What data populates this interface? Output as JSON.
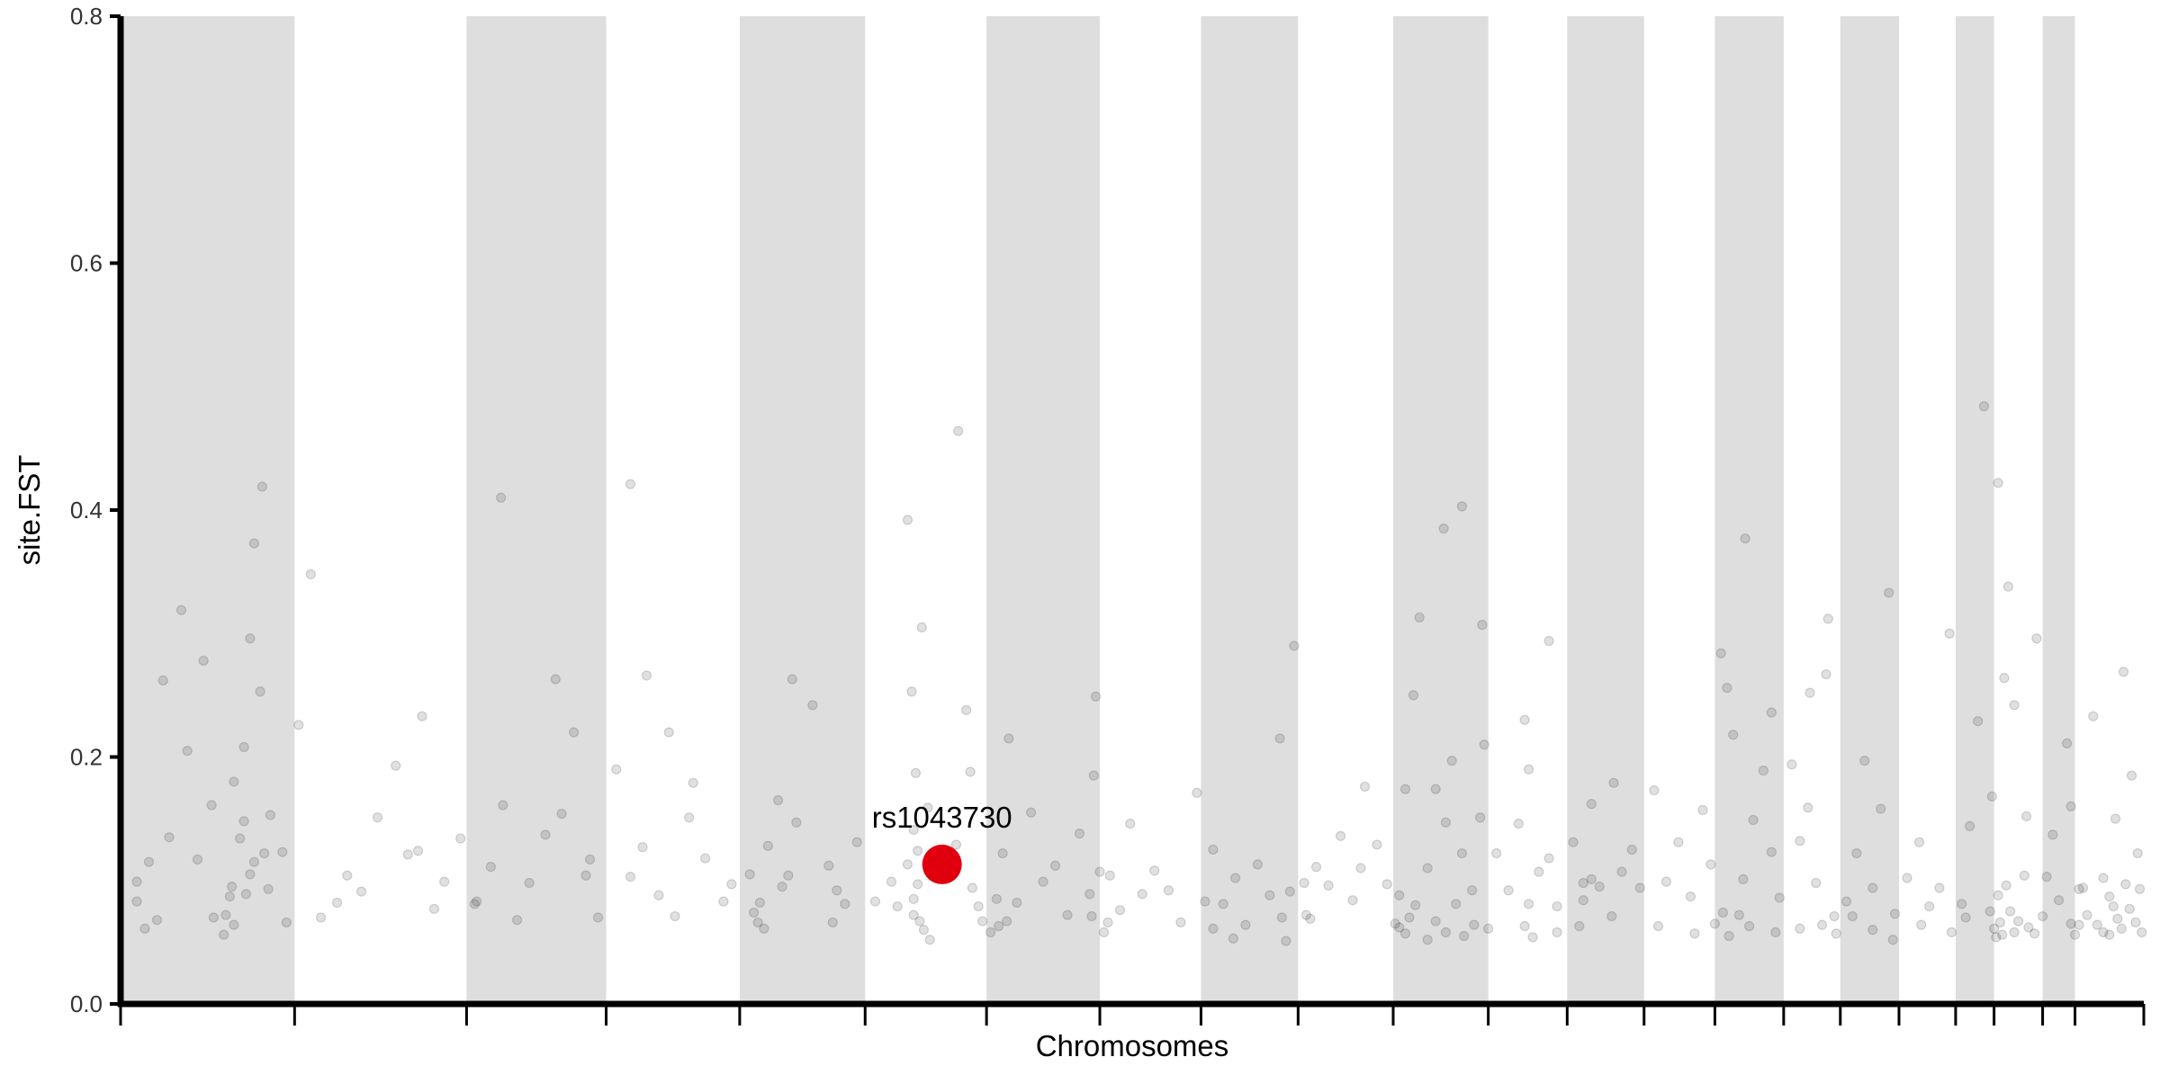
{
  "chart_data": {
    "type": "scatter",
    "title": "",
    "xlabel": "Chromosomes",
    "ylabel": "site.FST",
    "ylim": [
      0,
      0.8
    ],
    "yticks": [
      "0.0",
      "0.2",
      "0.4",
      "0.6",
      "0.8"
    ],
    "grid": false,
    "legend": "none",
    "point_color": "#000000",
    "point_opacity": 0.12,
    "band_color": "#dedede",
    "highlight_color": "#e0000d",
    "chromosome_bands": [
      {
        "start": 0.0,
        "end": 0.086,
        "shaded": true
      },
      {
        "start": 0.086,
        "end": 0.171,
        "shaded": false
      },
      {
        "start": 0.171,
        "end": 0.24,
        "shaded": true
      },
      {
        "start": 0.24,
        "end": 0.306,
        "shaded": false
      },
      {
        "start": 0.306,
        "end": 0.368,
        "shaded": true
      },
      {
        "start": 0.368,
        "end": 0.428,
        "shaded": false
      },
      {
        "start": 0.428,
        "end": 0.484,
        "shaded": true
      },
      {
        "start": 0.484,
        "end": 0.534,
        "shaded": false
      },
      {
        "start": 0.534,
        "end": 0.582,
        "shaded": true
      },
      {
        "start": 0.582,
        "end": 0.629,
        "shaded": false
      },
      {
        "start": 0.629,
        "end": 0.676,
        "shaded": true
      },
      {
        "start": 0.676,
        "end": 0.715,
        "shaded": false
      },
      {
        "start": 0.715,
        "end": 0.753,
        "shaded": true
      },
      {
        "start": 0.753,
        "end": 0.788,
        "shaded": false
      },
      {
        "start": 0.788,
        "end": 0.822,
        "shaded": true
      },
      {
        "start": 0.822,
        "end": 0.85,
        "shaded": false
      },
      {
        "start": 0.85,
        "end": 0.879,
        "shaded": true
      },
      {
        "start": 0.879,
        "end": 0.907,
        "shaded": false
      },
      {
        "start": 0.907,
        "end": 0.926,
        "shaded": true
      },
      {
        "start": 0.926,
        "end": 0.95,
        "shaded": false
      },
      {
        "start": 0.95,
        "end": 0.966,
        "shaded": true
      },
      {
        "start": 0.966,
        "end": 1.0,
        "shaded": false
      }
    ],
    "points": [
      [
        0.008,
        0.083
      ],
      [
        0.012,
        0.061
      ],
      [
        0.024,
        0.135
      ],
      [
        0.033,
        0.205
      ],
      [
        0.045,
        0.161
      ],
      [
        0.051,
        0.056
      ],
      [
        0.052,
        0.072
      ],
      [
        0.056,
        0.064
      ],
      [
        0.059,
        0.134
      ],
      [
        0.064,
        0.105
      ],
      [
        0.021,
        0.262
      ],
      [
        0.03,
        0.319
      ],
      [
        0.041,
        0.278
      ],
      [
        0.055,
        0.095
      ],
      [
        0.046,
        0.07
      ],
      [
        0.054,
        0.087
      ],
      [
        0.056,
        0.18
      ],
      [
        0.061,
        0.208
      ],
      [
        0.064,
        0.296
      ],
      [
        0.066,
        0.373
      ],
      [
        0.07,
        0.419
      ],
      [
        0.074,
        0.153
      ],
      [
        0.088,
        0.226
      ],
      [
        0.099,
        0.07
      ],
      [
        0.107,
        0.082
      ],
      [
        0.112,
        0.104
      ],
      [
        0.119,
        0.091
      ],
      [
        0.127,
        0.151
      ],
      [
        0.136,
        0.193
      ],
      [
        0.142,
        0.121
      ],
      [
        0.149,
        0.233
      ],
      [
        0.16,
        0.099
      ],
      [
        0.168,
        0.134
      ],
      [
        0.175,
        0.081
      ],
      [
        0.094,
        0.348
      ],
      [
        0.176,
        0.083
      ],
      [
        0.183,
        0.111
      ],
      [
        0.189,
        0.161
      ],
      [
        0.196,
        0.068
      ],
      [
        0.202,
        0.098
      ],
      [
        0.21,
        0.137
      ],
      [
        0.218,
        0.154
      ],
      [
        0.224,
        0.22
      ],
      [
        0.23,
        0.104
      ],
      [
        0.236,
        0.07
      ],
      [
        0.188,
        0.41
      ],
      [
        0.215,
        0.263
      ],
      [
        0.245,
        0.19
      ],
      [
        0.252,
        0.103
      ],
      [
        0.258,
        0.127
      ],
      [
        0.266,
        0.088
      ],
      [
        0.274,
        0.071
      ],
      [
        0.281,
        0.151
      ],
      [
        0.289,
        0.118
      ],
      [
        0.298,
        0.083
      ],
      [
        0.252,
        0.421
      ],
      [
        0.26,
        0.266
      ],
      [
        0.271,
        0.22
      ],
      [
        0.283,
        0.179
      ],
      [
        0.302,
        0.097
      ],
      [
        0.313,
        0.074
      ],
      [
        0.32,
        0.128
      ],
      [
        0.327,
        0.095
      ],
      [
        0.334,
        0.147
      ],
      [
        0.342,
        0.242
      ],
      [
        0.35,
        0.112
      ],
      [
        0.358,
        0.081
      ],
      [
        0.364,
        0.131
      ],
      [
        0.332,
        0.263
      ],
      [
        0.325,
        0.165
      ],
      [
        0.373,
        0.083
      ],
      [
        0.381,
        0.099
      ],
      [
        0.389,
        0.113
      ],
      [
        0.394,
        0.097
      ],
      [
        0.389,
        0.392
      ],
      [
        0.391,
        0.253
      ],
      [
        0.392,
        0.141
      ],
      [
        0.396,
        0.305
      ],
      [
        0.392,
        0.072
      ],
      [
        0.393,
        0.187
      ],
      [
        0.413,
        0.129
      ],
      [
        0.421,
        0.094
      ],
      [
        0.414,
        0.464
      ],
      [
        0.418,
        0.238
      ],
      [
        0.42,
        0.188
      ],
      [
        0.424,
        0.079
      ],
      [
        0.433,
        0.085
      ],
      [
        0.436,
        0.122
      ],
      [
        0.439,
        0.215
      ],
      [
        0.443,
        0.082
      ],
      [
        0.45,
        0.155
      ],
      [
        0.456,
        0.099
      ],
      [
        0.462,
        0.112
      ],
      [
        0.468,
        0.072
      ],
      [
        0.474,
        0.138
      ],
      [
        0.479,
        0.089
      ],
      [
        0.482,
        0.249
      ],
      [
        0.481,
        0.185
      ],
      [
        0.489,
        0.104
      ],
      [
        0.494,
        0.076
      ],
      [
        0.499,
        0.146
      ],
      [
        0.505,
        0.089
      ],
      [
        0.511,
        0.108
      ],
      [
        0.518,
        0.092
      ],
      [
        0.524,
        0.066
      ],
      [
        0.532,
        0.171
      ],
      [
        0.536,
        0.083
      ],
      [
        0.54,
        0.125
      ],
      [
        0.545,
        0.081
      ],
      [
        0.551,
        0.102
      ],
      [
        0.556,
        0.064
      ],
      [
        0.562,
        0.113
      ],
      [
        0.568,
        0.088
      ],
      [
        0.573,
        0.215
      ],
      [
        0.578,
        0.091
      ],
      [
        0.58,
        0.29
      ],
      [
        0.586,
        0.072
      ],
      [
        0.591,
        0.111
      ],
      [
        0.597,
        0.096
      ],
      [
        0.603,
        0.136
      ],
      [
        0.609,
        0.084
      ],
      [
        0.615,
        0.176
      ],
      [
        0.621,
        0.129
      ],
      [
        0.626,
        0.097
      ],
      [
        0.613,
        0.11
      ],
      [
        0.632,
        0.088
      ],
      [
        0.635,
        0.174
      ],
      [
        0.639,
        0.25
      ],
      [
        0.642,
        0.313
      ],
      [
        0.646,
        0.11
      ],
      [
        0.65,
        0.174
      ],
      [
        0.655,
        0.147
      ],
      [
        0.658,
        0.197
      ],
      [
        0.663,
        0.122
      ],
      [
        0.668,
        0.092
      ],
      [
        0.672,
        0.151
      ],
      [
        0.674,
        0.21
      ],
      [
        0.654,
        0.385
      ],
      [
        0.663,
        0.403
      ],
      [
        0.673,
        0.307
      ],
      [
        0.68,
        0.122
      ],
      [
        0.686,
        0.092
      ],
      [
        0.691,
        0.146
      ],
      [
        0.696,
        0.19
      ],
      [
        0.701,
        0.107
      ],
      [
        0.706,
        0.118
      ],
      [
        0.71,
        0.079
      ],
      [
        0.694,
        0.23
      ],
      [
        0.706,
        0.294
      ],
      [
        0.718,
        0.131
      ],
      [
        0.723,
        0.084
      ],
      [
        0.727,
        0.162
      ],
      [
        0.731,
        0.095
      ],
      [
        0.737,
        0.071
      ],
      [
        0.742,
        0.107
      ],
      [
        0.747,
        0.125
      ],
      [
        0.751,
        0.094
      ],
      [
        0.738,
        0.179
      ],
      [
        0.727,
        0.101
      ],
      [
        0.758,
        0.173
      ],
      [
        0.764,
        0.099
      ],
      [
        0.77,
        0.131
      ],
      [
        0.776,
        0.087
      ],
      [
        0.782,
        0.157
      ],
      [
        0.786,
        0.113
      ],
      [
        0.791,
        0.284
      ],
      [
        0.794,
        0.256
      ],
      [
        0.797,
        0.218
      ],
      [
        0.802,
        0.101
      ],
      [
        0.807,
        0.149
      ],
      [
        0.812,
        0.189
      ],
      [
        0.816,
        0.123
      ],
      [
        0.82,
        0.086
      ],
      [
        0.803,
        0.377
      ],
      [
        0.816,
        0.236
      ],
      [
        0.826,
        0.194
      ],
      [
        0.83,
        0.132
      ],
      [
        0.834,
        0.159
      ],
      [
        0.838,
        0.098
      ],
      [
        0.843,
        0.267
      ],
      [
        0.844,
        0.312
      ],
      [
        0.847,
        0.071
      ],
      [
        0.835,
        0.252
      ],
      [
        0.853,
        0.083
      ],
      [
        0.858,
        0.122
      ],
      [
        0.862,
        0.197
      ],
      [
        0.866,
        0.094
      ],
      [
        0.87,
        0.158
      ],
      [
        0.874,
        0.333
      ],
      [
        0.877,
        0.073
      ],
      [
        0.883,
        0.102
      ],
      [
        0.889,
        0.131
      ],
      [
        0.894,
        0.079
      ],
      [
        0.899,
        0.094
      ],
      [
        0.904,
        0.3
      ],
      [
        0.91,
        0.081
      ],
      [
        0.914,
        0.144
      ],
      [
        0.918,
        0.229
      ],
      [
        0.921,
        0.484
      ],
      [
        0.925,
        0.168
      ],
      [
        0.928,
        0.422
      ],
      [
        0.931,
        0.264
      ],
      [
        0.933,
        0.338
      ],
      [
        0.936,
        0.242
      ],
      [
        0.942,
        0.152
      ],
      [
        0.947,
        0.296
      ],
      [
        0.952,
        0.103
      ],
      [
        0.955,
        0.137
      ],
      [
        0.958,
        0.084
      ],
      [
        0.962,
        0.211
      ],
      [
        0.964,
        0.16
      ],
      [
        0.97,
        0.094
      ],
      [
        0.975,
        0.233
      ],
      [
        0.98,
        0.102
      ],
      [
        0.986,
        0.15
      ],
      [
        0.99,
        0.269
      ],
      [
        0.994,
        0.185
      ],
      [
        0.997,
        0.122
      ],
      [
        0.968,
        0.064
      ],
      [
        0.983,
        0.056
      ],
      [
        0.008,
        0.099
      ],
      [
        0.014,
        0.115
      ],
      [
        0.018,
        0.068
      ],
      [
        0.038,
        0.117
      ],
      [
        0.061,
        0.148
      ],
      [
        0.062,
        0.089
      ],
      [
        0.066,
        0.115
      ],
      [
        0.069,
        0.253
      ],
      [
        0.071,
        0.122
      ],
      [
        0.073,
        0.093
      ],
      [
        0.08,
        0.123
      ],
      [
        0.082,
        0.066
      ],
      [
        0.147,
        0.124
      ],
      [
        0.155,
        0.077
      ],
      [
        0.232,
        0.117
      ],
      [
        0.311,
        0.105
      ],
      [
        0.315,
        0.066
      ],
      [
        0.316,
        0.082
      ],
      [
        0.318,
        0.061
      ],
      [
        0.33,
        0.104
      ],
      [
        0.352,
        0.066
      ],
      [
        0.354,
        0.092
      ],
      [
        0.392,
        0.085
      ],
      [
        0.394,
        0.124
      ],
      [
        0.395,
        0.067
      ],
      [
        0.397,
        0.06
      ],
      [
        0.399,
        0.159
      ],
      [
        0.4,
        0.052
      ],
      [
        0.384,
        0.079
      ],
      [
        0.426,
        0.067
      ],
      [
        0.43,
        0.058
      ],
      [
        0.434,
        0.063
      ],
      [
        0.438,
        0.067
      ],
      [
        0.48,
        0.071
      ],
      [
        0.484,
        0.107
      ],
      [
        0.486,
        0.058
      ],
      [
        0.488,
        0.066
      ],
      [
        0.54,
        0.061
      ],
      [
        0.55,
        0.053
      ],
      [
        0.574,
        0.07
      ],
      [
        0.576,
        0.051
      ],
      [
        0.585,
        0.098
      ],
      [
        0.588,
        0.069
      ],
      [
        0.63,
        0.065
      ],
      [
        0.632,
        0.062
      ],
      [
        0.635,
        0.057
      ],
      [
        0.637,
        0.07
      ],
      [
        0.64,
        0.08
      ],
      [
        0.646,
        0.052
      ],
      [
        0.65,
        0.067
      ],
      [
        0.655,
        0.058
      ],
      [
        0.66,
        0.081
      ],
      [
        0.664,
        0.055
      ],
      [
        0.669,
        0.064
      ],
      [
        0.676,
        0.061
      ],
      [
        0.694,
        0.063
      ],
      [
        0.696,
        0.081
      ],
      [
        0.698,
        0.054
      ],
      [
        0.71,
        0.058
      ],
      [
        0.721,
        0.063
      ],
      [
        0.723,
        0.098
      ],
      [
        0.76,
        0.063
      ],
      [
        0.778,
        0.057
      ],
      [
        0.788,
        0.065
      ],
      [
        0.792,
        0.074
      ],
      [
        0.795,
        0.055
      ],
      [
        0.8,
        0.072
      ],
      [
        0.805,
        0.063
      ],
      [
        0.818,
        0.058
      ],
      [
        0.83,
        0.061
      ],
      [
        0.841,
        0.064
      ],
      [
        0.848,
        0.057
      ],
      [
        0.856,
        0.071
      ],
      [
        0.866,
        0.06
      ],
      [
        0.876,
        0.052
      ],
      [
        0.89,
        0.064
      ],
      [
        0.905,
        0.058
      ],
      [
        0.912,
        0.07
      ],
      [
        0.924,
        0.075
      ],
      [
        0.926,
        0.061
      ],
      [
        0.927,
        0.054
      ],
      [
        0.928,
        0.088
      ],
      [
        0.929,
        0.066
      ],
      [
        0.93,
        0.056
      ],
      [
        0.932,
        0.096
      ],
      [
        0.934,
        0.075
      ],
      [
        0.936,
        0.058
      ],
      [
        0.938,
        0.067
      ],
      [
        0.941,
        0.104
      ],
      [
        0.943,
        0.062
      ],
      [
        0.946,
        0.057
      ],
      [
        0.95,
        0.071
      ],
      [
        0.964,
        0.065
      ],
      [
        0.966,
        0.056
      ],
      [
        0.968,
        0.093
      ],
      [
        0.972,
        0.072
      ],
      [
        0.977,
        0.064
      ],
      [
        0.98,
        0.058
      ],
      [
        0.983,
        0.087
      ],
      [
        0.985,
        0.079
      ],
      [
        0.987,
        0.069
      ],
      [
        0.989,
        0.061
      ],
      [
        0.991,
        0.097
      ],
      [
        0.993,
        0.077
      ],
      [
        0.996,
        0.066
      ],
      [
        0.998,
        0.093
      ],
      [
        0.999,
        0.058
      ]
    ],
    "highlight": {
      "label": "rs1043730",
      "x": 0.406,
      "y": 0.113
    }
  }
}
